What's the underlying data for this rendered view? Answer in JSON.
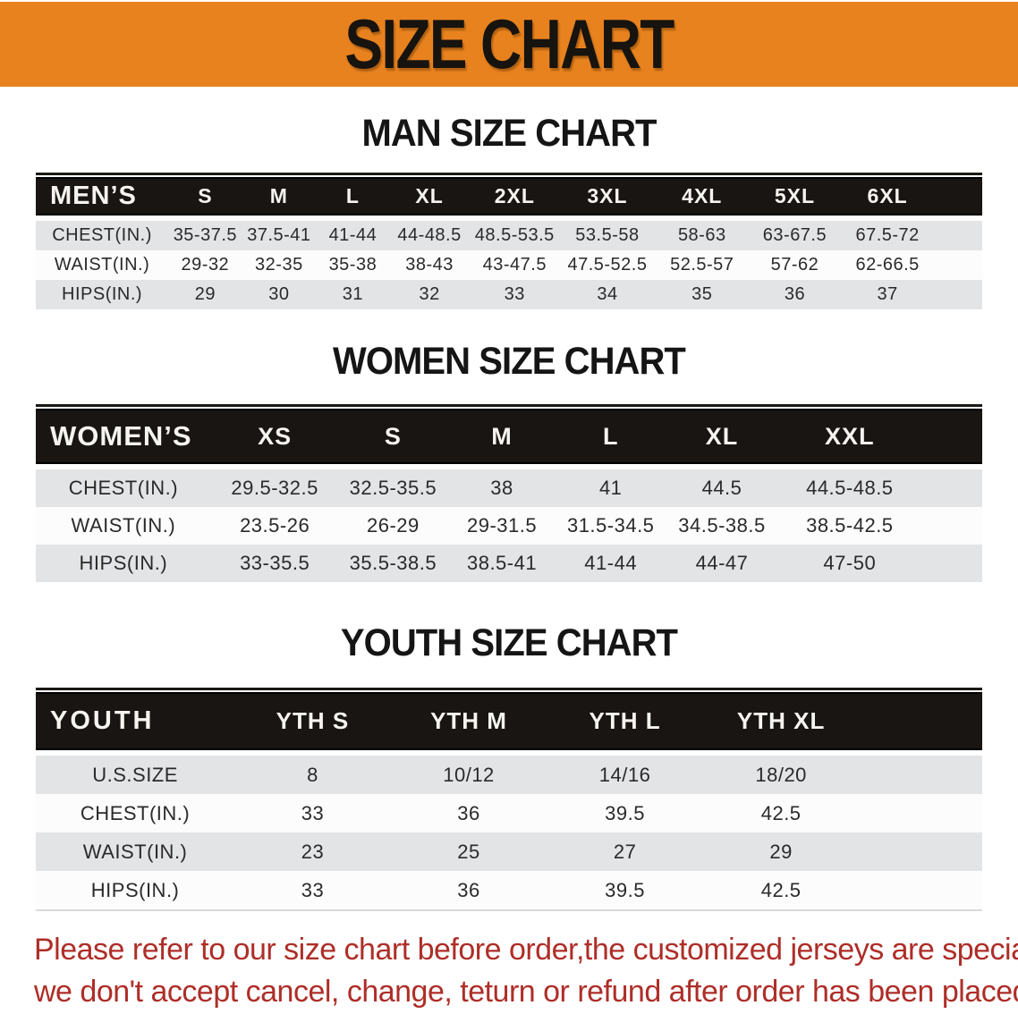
{
  "banner": {
    "title": "SIZE CHART",
    "bg_color": "#E8821E",
    "text_color": "#17130F"
  },
  "sections": [
    {
      "heading": "MAN SIZE CHART",
      "table": {
        "header_label": "MEN’S",
        "columns": [
          "S",
          "M",
          "L",
          "XL",
          "2XL",
          "3XL",
          "4XL",
          "5XL",
          "6XL"
        ],
        "rows": [
          {
            "label": "CHEST(IN.)",
            "values": [
              "35-37.5",
              "37.5-41",
              "41-44",
              "44-48.5",
              "48.5-53.5",
              "53.5-58",
              "58-63",
              "63-67.5",
              "67.5-72"
            ]
          },
          {
            "label": "WAIST(IN.)",
            "values": [
              "29-32",
              "32-35",
              "35-38",
              "38-43",
              "43-47.5",
              "47.5-52.5",
              "52.5-57",
              "57-62",
              "62-66.5"
            ]
          },
          {
            "label": "HIPS(IN.)",
            "values": [
              "29",
              "30",
              "31",
              "32",
              "33",
              "34",
              "35",
              "36",
              "37"
            ]
          }
        ]
      }
    },
    {
      "heading": "WOMEN SIZE CHART",
      "table": {
        "header_label": "WOMEN’S",
        "columns": [
          "XS",
          "S",
          "M",
          "L",
          "XL",
          "XXL"
        ],
        "rows": [
          {
            "label": "CHEST(IN.)",
            "values": [
              "29.5-32.5",
              "32.5-35.5",
              "38",
              "41",
              "44.5",
              "44.5-48.5"
            ]
          },
          {
            "label": "WAIST(IN.)",
            "values": [
              "23.5-26",
              "26-29",
              "29-31.5",
              "31.5-34.5",
              "34.5-38.5",
              "38.5-42.5"
            ]
          },
          {
            "label": "HIPS(IN.)",
            "values": [
              "33-35.5",
              "35.5-38.5",
              "38.5-41",
              "41-44",
              "44-47",
              "47-50"
            ]
          }
        ]
      }
    },
    {
      "heading": "YOUTH SIZE CHART",
      "table": {
        "header_label": "YOUTH",
        "columns": [
          "YTH S",
          "YTH M",
          "YTH L",
          "YTH XL"
        ],
        "rows": [
          {
            "label": "U.S.SIZE",
            "values": [
              "8",
              "10/12",
              "14/16",
              "18/20"
            ]
          },
          {
            "label": "CHEST(IN.)",
            "values": [
              "33",
              "36",
              "39.5",
              "42.5"
            ]
          },
          {
            "label": "WAIST(IN.)",
            "values": [
              "23",
              "25",
              "27",
              "29"
            ]
          },
          {
            "label": "HIPS(IN.)",
            "values": [
              "33",
              "36",
              "39.5",
              "42.5"
            ]
          }
        ]
      }
    }
  ],
  "disclaimer": {
    "line1": "Please refer to our size chart before order,the customized jerseys are special products,",
    "line2": "we don't accept cancel, change, teturn or refund after order has been placed!",
    "color": "#AE2E28"
  },
  "style_colors": {
    "table_header_bg": "#181512",
    "row_shade": "#E3E4E6",
    "row_plain": "#FCFCFD"
  }
}
